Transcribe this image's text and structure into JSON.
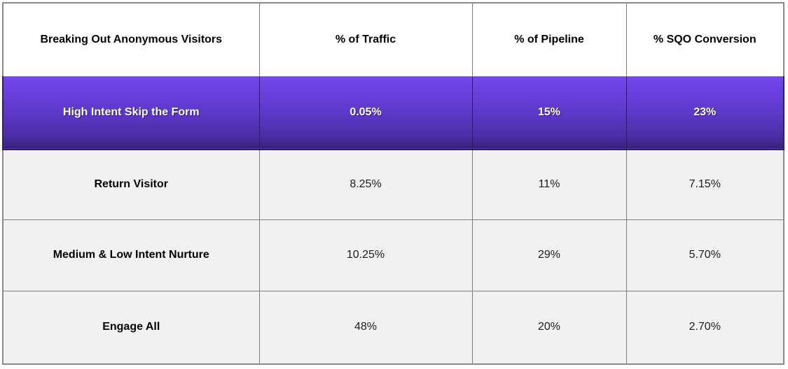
{
  "table": {
    "header": {
      "col0": "Breaking Out Anonymous Visitors",
      "col1": "% of Traffic",
      "col2": "% of Pipeline",
      "col3": "% SQO Conversion"
    },
    "rows": [
      {
        "cells": [
          "High Intent Skip the Form",
          "0.05%",
          "15%",
          "23%"
        ],
        "highlighted": true
      },
      {
        "cells": [
          "Return Visitor",
          "8.25%",
          "11%",
          "7.15%"
        ],
        "highlighted": false
      },
      {
        "cells": [
          "Medium & Low Intent Nurture",
          "10.25%",
          "29%",
          "5.70%"
        ],
        "highlighted": false
      },
      {
        "cells": [
          "Engage All",
          "48%",
          "20%",
          "2.70%"
        ],
        "highlighted": false
      }
    ],
    "colors": {
      "highlight_gradient_top": "#7348EA",
      "highlight_gradient_bottom": "#31206E",
      "highlight_text": "#FFFFFF",
      "header_background": "#FFFFFF",
      "row_background": "#F1F1F1",
      "grid_line": "#7F7F7F",
      "text": "#000000"
    }
  },
  "chart_data": {
    "type": "table",
    "title": "Breaking Out Anonymous Visitors",
    "columns": [
      "Breaking Out Anonymous Visitors",
      "% of Traffic",
      "% of Pipeline",
      "% SQO Conversion"
    ],
    "rows": [
      [
        "High Intent Skip the Form",
        "0.05%",
        "15%",
        "23%"
      ],
      [
        "Return Visitor",
        "8.25%",
        "11%",
        "7.15%"
      ],
      [
        "Medium & Low Intent Nurture",
        "10.25%",
        "29%",
        "5.70%"
      ],
      [
        "Engage All",
        "48%",
        "20%",
        "2.70%"
      ]
    ],
    "highlighted_row": "High Intent Skip the Form",
    "notes": {
      "traffic_values": [
        0.05,
        8.25,
        10.25,
        48
      ],
      "pipeline_values": [
        15,
        11,
        29,
        20
      ],
      "sqo_conversion_values": [
        23,
        7.15,
        5.7,
        2.7
      ],
      "units": "percent"
    }
  }
}
